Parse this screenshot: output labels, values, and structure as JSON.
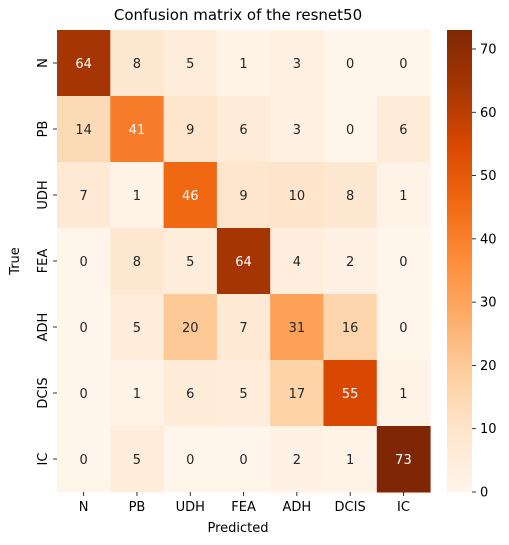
{
  "chart_data": {
    "type": "heatmap",
    "title": "Confusion matrix of the resnet50",
    "xlabel": "Predicted",
    "ylabel": "True",
    "x_categories": [
      "N",
      "PB",
      "UDH",
      "FEA",
      "ADH",
      "DCIS",
      "IC"
    ],
    "y_categories": [
      "N",
      "PB",
      "UDH",
      "FEA",
      "ADH",
      "DCIS",
      "IC"
    ],
    "values": [
      [
        64,
        8,
        5,
        1,
        3,
        0,
        0
      ],
      [
        14,
        41,
        9,
        6,
        3,
        0,
        6
      ],
      [
        7,
        1,
        46,
        9,
        10,
        8,
        1
      ],
      [
        0,
        8,
        5,
        64,
        4,
        2,
        0
      ],
      [
        0,
        5,
        20,
        7,
        31,
        16,
        0
      ],
      [
        0,
        1,
        6,
        5,
        17,
        55,
        1
      ],
      [
        0,
        5,
        0,
        0,
        2,
        1,
        73
      ]
    ],
    "colorbar": {
      "colormap": "Oranges",
      "range": [
        0,
        73
      ],
      "ticks": [
        0,
        10,
        20,
        30,
        40,
        50,
        60,
        70
      ]
    },
    "grid": false
  }
}
